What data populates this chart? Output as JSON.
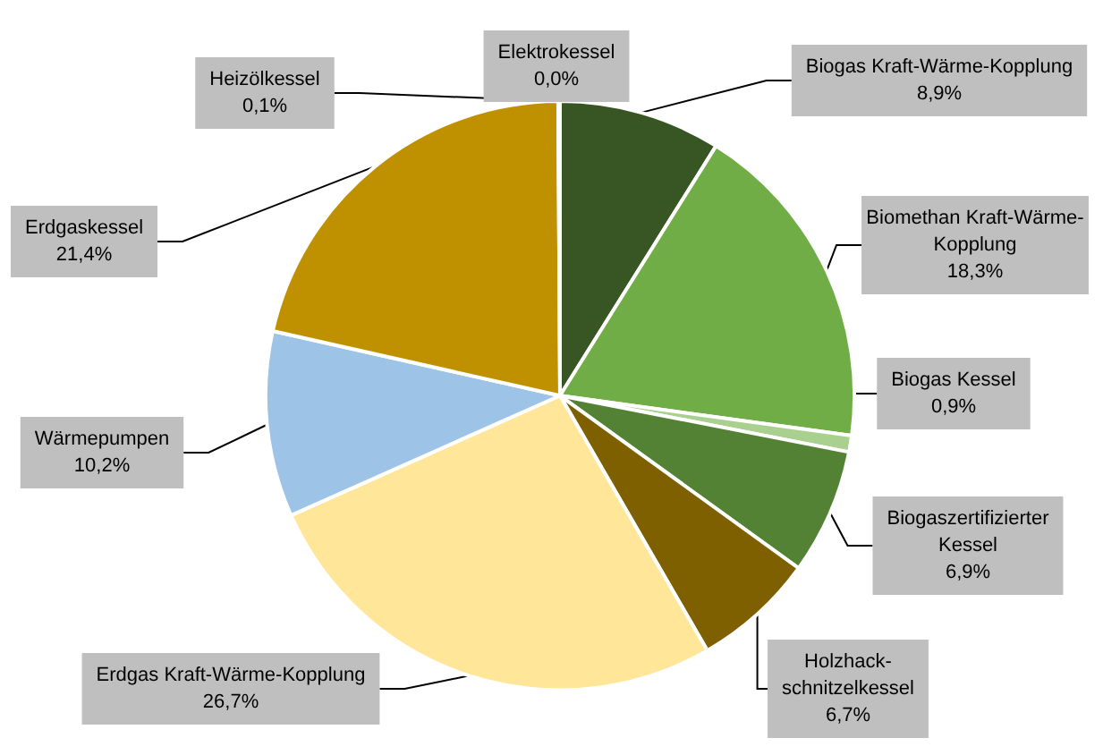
{
  "chart_data": {
    "type": "pie",
    "categories": [
      "Biogas Kraft-Wärme-Kopplung",
      "Biomethan Kraft-Wärme-Kopplung",
      "Biogas Kessel",
      "Biogaszertifizierter Kessel",
      "Holzhack-schnitzelkessel",
      "Erdgas Kraft-Wärme-Kopplung",
      "Wärmepumpen",
      "Erdgaskessel",
      "Heizölkessel",
      "Elektrokessel"
    ],
    "values": [
      8.9,
      18.3,
      0.9,
      6.9,
      6.7,
      26.7,
      10.2,
      21.4,
      0.1,
      0.0
    ],
    "colors": [
      "#375623",
      "#70ad47",
      "#a9d08e",
      "#548235",
      "#7f6000",
      "#ffe699",
      "#9dc3e6",
      "#bf9000",
      "#c65911",
      "#4472c4"
    ],
    "value_labels": [
      "8,9%",
      "18,3%",
      "0,9%",
      "6,9%",
      "6,7%",
      "26,7%",
      "10,2%",
      "21,4%",
      "0,1%",
      "0,0%"
    ],
    "legend": false
  }
}
